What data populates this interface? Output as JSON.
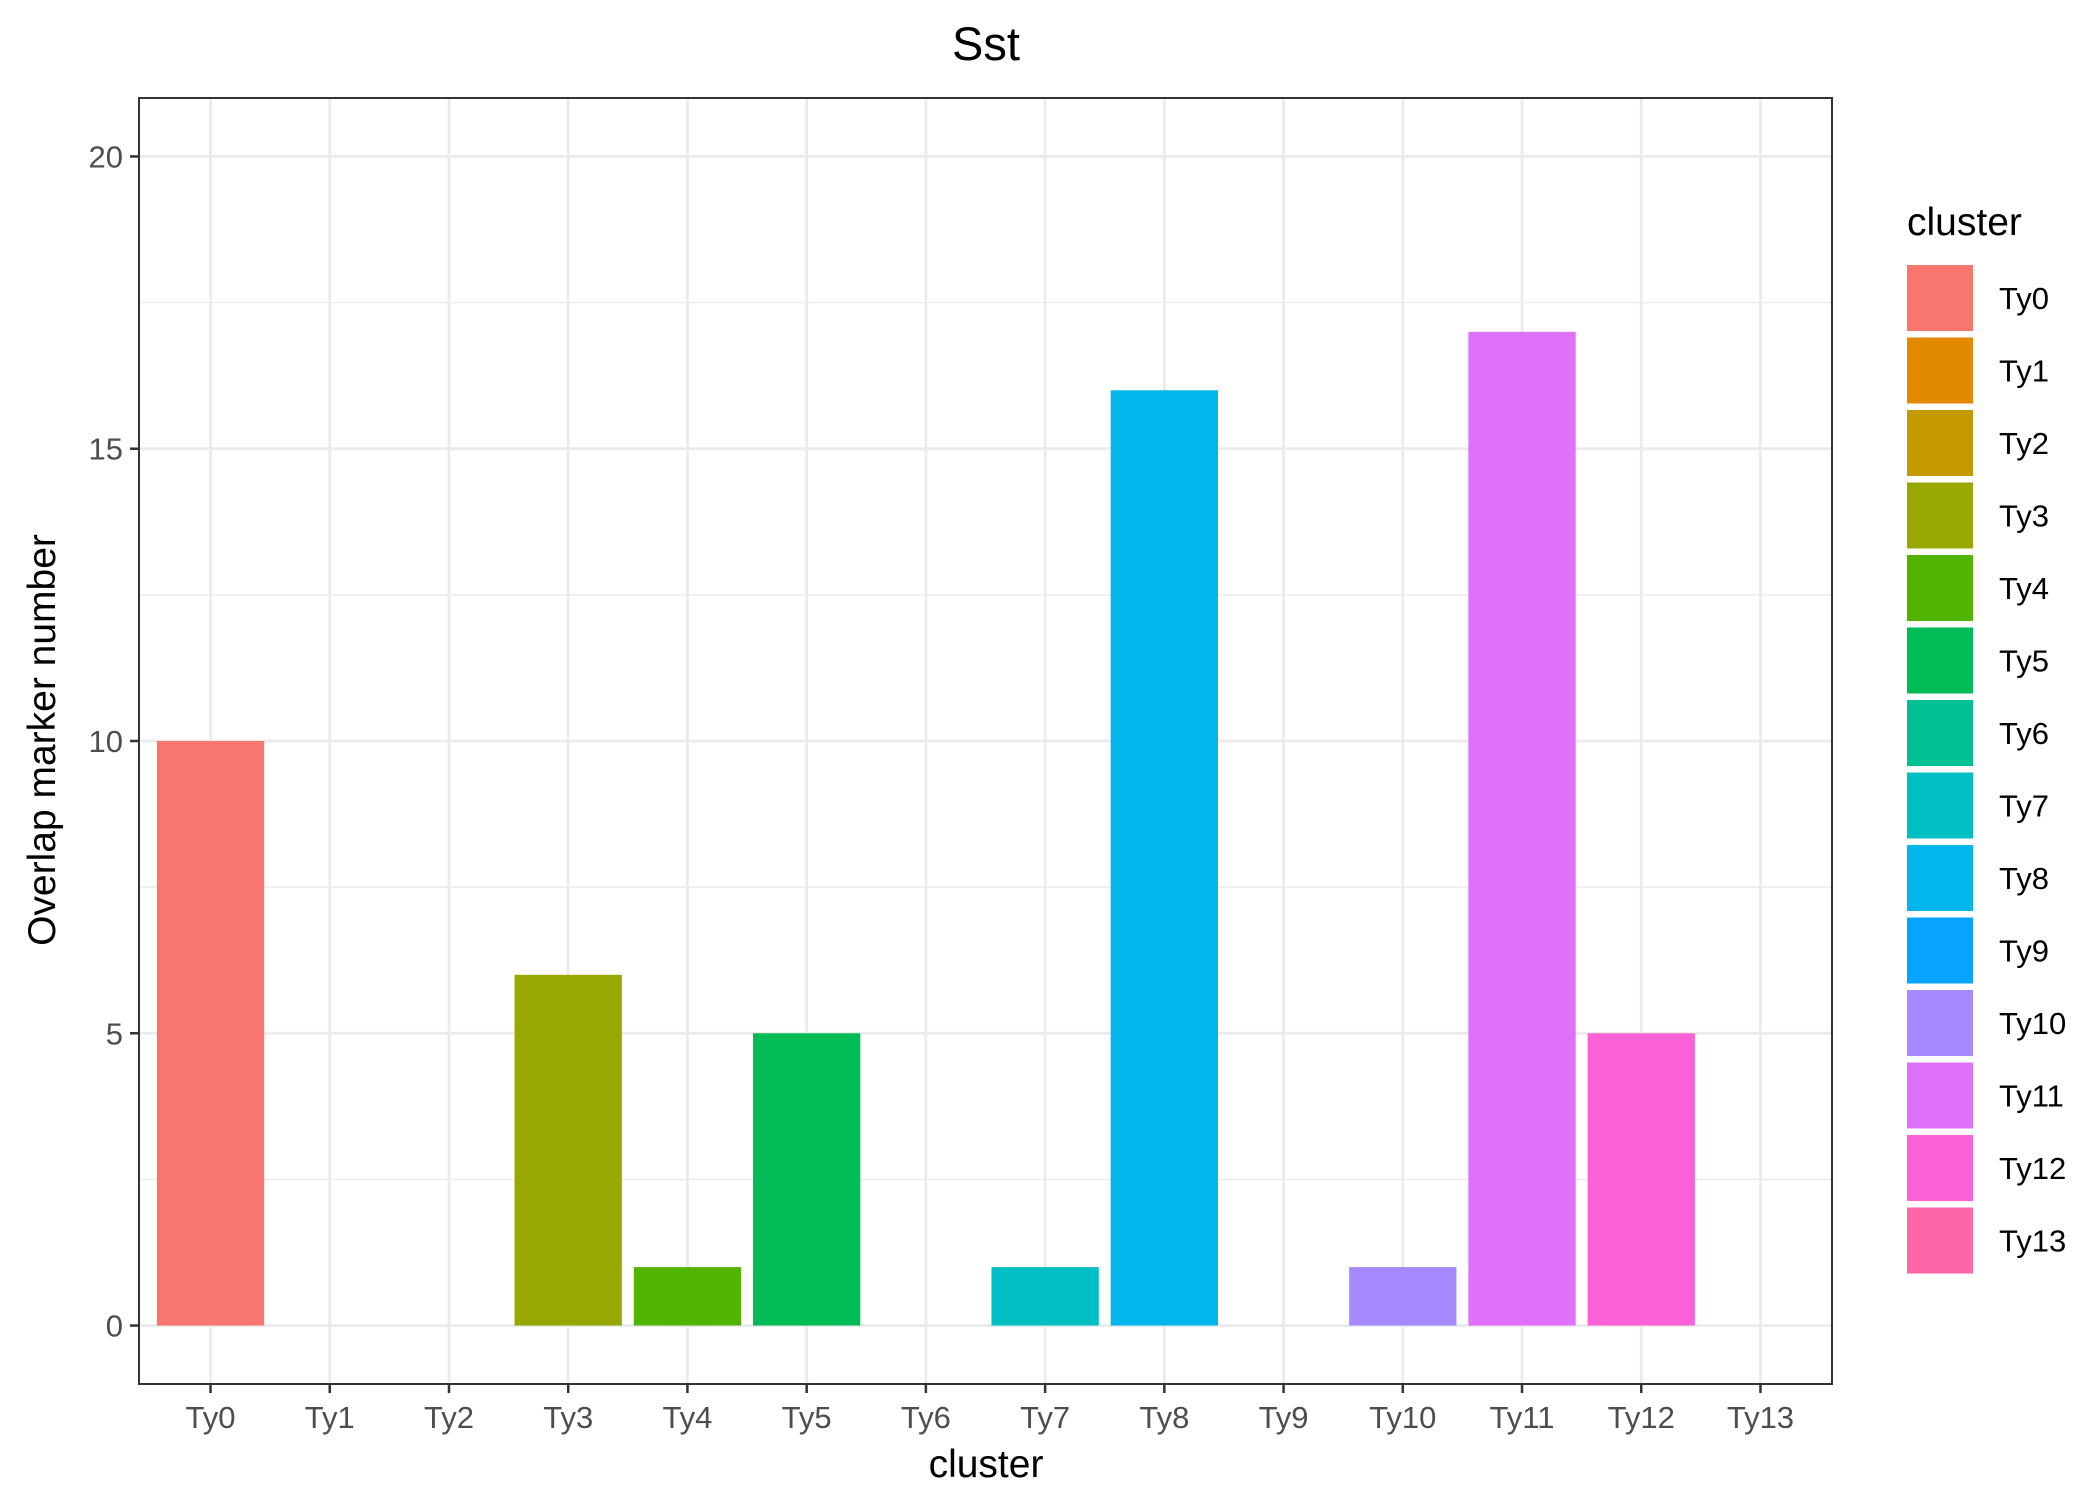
{
  "chart_data": {
    "type": "bar",
    "title": "Sst",
    "xlabel": "cluster",
    "ylabel": "Overlap marker number",
    "categories": [
      "Ty0",
      "Ty1",
      "Ty2",
      "Ty3",
      "Ty4",
      "Ty5",
      "Ty6",
      "Ty7",
      "Ty8",
      "Ty9",
      "Ty10",
      "Ty11",
      "Ty12",
      "Ty13"
    ],
    "values": [
      10,
      0,
      0,
      6,
      1,
      5,
      0,
      1,
      16,
      0,
      1,
      17,
      5,
      0
    ],
    "colors": [
      "#F8766D",
      "#E38900",
      "#C49A00",
      "#99A800",
      "#53B400",
      "#00BC56",
      "#00C094",
      "#00BFC4",
      "#00B6EB",
      "#06A4FF",
      "#A58AFF",
      "#DF70F8",
      "#FB61D7",
      "#FF66A8"
    ],
    "ylim": [
      -1,
      21
    ],
    "yticks": [
      0,
      5,
      10,
      15,
      20
    ],
    "grid": true,
    "legend": {
      "title": "cluster",
      "placement": "right",
      "entries": [
        "Ty0",
        "Ty1",
        "Ty2",
        "Ty3",
        "Ty4",
        "Ty5",
        "Ty6",
        "Ty7",
        "Ty8",
        "Ty9",
        "Ty10",
        "Ty11",
        "Ty12",
        "Ty13"
      ]
    }
  }
}
